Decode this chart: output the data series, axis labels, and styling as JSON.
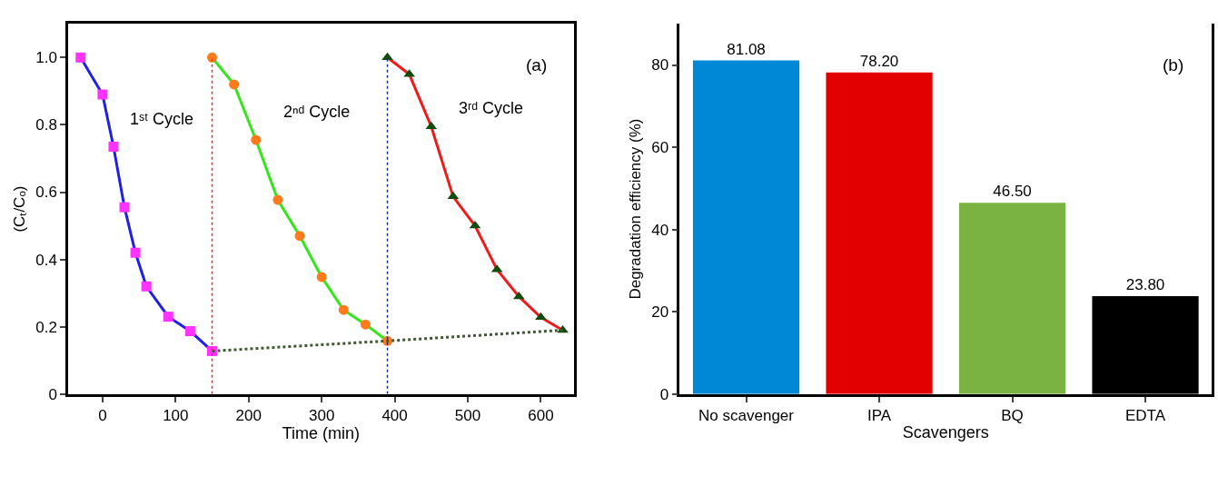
{
  "chart_data": [
    {
      "type": "line",
      "xlabel": "Time (min)",
      "ylabel": "(Cₜ/Cₒ)",
      "xlim": [
        -47,
        645
      ],
      "xticks": [
        0,
        100,
        200,
        300,
        400,
        500,
        600
      ],
      "ylim": [
        0,
        1.1
      ],
      "yticks": [
        0,
        0.2,
        0.4,
        0.6,
        0.8,
        {
          "value": 1.0,
          "label": "1.0"
        }
      ],
      "grid": false,
      "legend": false,
      "series": [
        {
          "name": "1ˢᵗ Cycle",
          "color": "#1f1fe6",
          "marker": "square",
          "colors": [
            "#ff33ff",
            "#ff33ff",
            "#ff33ff",
            "#ff33ff",
            "#ff33ff",
            "#ff33ff",
            "#ff33ff",
            "#ff33ff",
            "#ff33ff"
          ],
          "x": [
            -30,
            0,
            15,
            30,
            45,
            60,
            90,
            120,
            150
          ],
          "values": [
            1.0,
            0.89,
            0.735,
            0.555,
            0.42,
            0.32,
            0.23,
            0.187,
            0.128
          ]
        },
        {
          "name": "2ⁿᵈ Cycle",
          "color": "#33e61a",
          "marker": "circle",
          "colors": [
            "#ff7a1a",
            "#ff7a1a",
            "#ff7a1a",
            "#ff7a1a",
            "#ff7a1a",
            "#ff7a1a",
            "#ff7a1a",
            "#ff7a1a",
            "#ff7a1a"
          ],
          "x": [
            150,
            180,
            210,
            240,
            270,
            300,
            330,
            360,
            390
          ],
          "values": [
            1.0,
            0.92,
            0.755,
            0.577,
            0.47,
            0.348,
            0.25,
            0.207,
            0.158
          ]
        },
        {
          "name": "3ʳᵈ Cycle",
          "color": "#f01a1a",
          "marker": "triangle",
          "colors": [
            "#0f4d0f",
            "#0f4d0f",
            "#0f4d0f",
            "#0f4d0f",
            "#0f4d0f",
            "#0f4d0f",
            "#0f4d0f",
            "#0f4d0f",
            "#0f4d0f"
          ],
          "x": [
            390,
            420,
            450,
            480,
            510,
            540,
            570,
            600,
            630
          ],
          "values": [
            1.0,
            0.95,
            0.795,
            0.587,
            0.5,
            0.37,
            0.29,
            0.228,
            0.19
          ]
        },
        {
          "color": "#3d5c2e",
          "marker": "none",
          "line_style": "dotted",
          "x": [
            150,
            390,
            630
          ],
          "values": [
            0.128,
            0.158,
            0.19
          ]
        }
      ],
      "ref_lines": [
        {
          "axis": "x",
          "value": 150,
          "color": "#e03030",
          "line_style": "dotted"
        },
        {
          "axis": "x",
          "value": 390,
          "color": "#1a2a8a",
          "line_style": "dotted"
        }
      ],
      "annotations": [
        "(a)"
      ]
    },
    {
      "type": "bar",
      "xlabel": "Scavengers",
      "ylabel": "Degradation efficiency (%)",
      "categories": [
        "No scavenger",
        "IPA",
        "BQ",
        "EDTA"
      ],
      "values": [
        81.08,
        78.2,
        46.5,
        23.8
      ],
      "value_labels": [
        "81.08",
        "78.20",
        "46.50",
        "23.80"
      ],
      "colors": [
        "#0088d6",
        "#e30000",
        "#7ab342",
        "#000000"
      ],
      "ylim": [
        0,
        90
      ],
      "yticks": [
        0,
        20,
        40,
        60,
        80
      ],
      "grid": false,
      "annotations": [
        "(b)"
      ]
    }
  ]
}
